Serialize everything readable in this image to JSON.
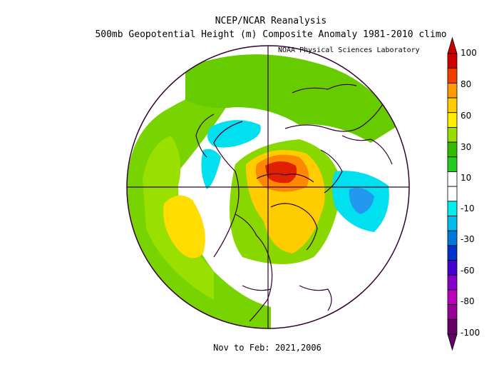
{
  "title_line1": "NCEP/NCAR Reanalysis",
  "title_line2": "500mb Geopotential Height (m) Composite Anomaly 1981-2010 climo",
  "credit": "NOAA Physical Sciences Laboratory",
  "period": "Nov to Feb: 2021,2006",
  "colorbar": {
    "labels": [
      "100",
      "80",
      "60",
      "30",
      "10",
      "-10",
      "-30",
      "-60",
      "-80",
      "-100"
    ],
    "colors": [
      "#d00000",
      "#f04000",
      "#ff9900",
      "#ffcc00",
      "#ffee00",
      "#99dd00",
      "#33bb00",
      "#22cc22",
      "#ffffff",
      "#ffffff",
      "#00eeee",
      "#00bbee",
      "#0077dd",
      "#0033cc",
      "#4400cc",
      "#8800cc",
      "#bb00bb",
      "#990099",
      "#660066"
    ]
  }
}
